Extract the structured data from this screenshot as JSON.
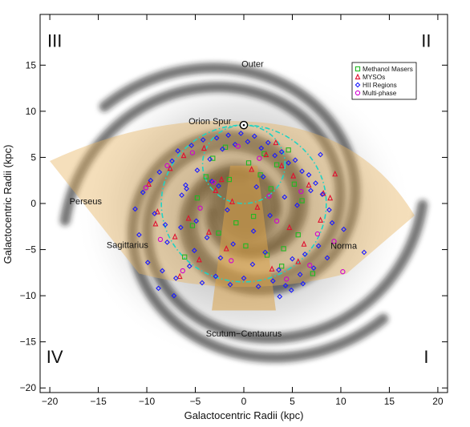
{
  "chart_data": {
    "type": "scatter",
    "xlabel": "Galactocentric Radii (kpc)",
    "ylabel": "Galactocentric Radii (kpc)",
    "xlim": [
      -21,
      21
    ],
    "ylim": [
      -20.5,
      20.5
    ],
    "xticks": [
      -20,
      -15,
      -10,
      -5,
      0,
      5,
      10,
      15,
      20
    ],
    "yticks": [
      -20,
      -15,
      -10,
      -5,
      0,
      5,
      10,
      15
    ],
    "quadrant_labels": [
      {
        "text": "III",
        "x": -19.5,
        "y": 17
      },
      {
        "text": "II",
        "x": 18.8,
        "y": 17
      },
      {
        "text": "IV",
        "x": -19.5,
        "y": -17.3
      },
      {
        "text": "I",
        "x": 18.8,
        "y": -17.3
      }
    ],
    "arm_labels": [
      {
        "text": "Outer",
        "x": 0.9,
        "y": 14.8
      },
      {
        "text": "Orion Spur",
        "x": -3.5,
        "y": 8.6
      },
      {
        "text": "Perseus",
        "x": -16.3,
        "y": -0.1
      },
      {
        "text": "Sagittarius",
        "x": -12,
        "y": -4.8
      },
      {
        "text": "Norma",
        "x": 10.3,
        "y": -4.9
      },
      {
        "text": "Scutum−Centaurus",
        "x": 0,
        "y": -14.4
      }
    ],
    "sun": {
      "x": 0,
      "y": 8.5
    },
    "legend": {
      "position": "top-right",
      "entries": [
        {
          "label": "Methanol Masers",
          "marker": "square",
          "color": "#22b822"
        },
        {
          "label": "MYSOs",
          "marker": "triangle",
          "color": "#e01030"
        },
        {
          "label": "HII Regions",
          "marker": "diamond",
          "color": "#1a1aff"
        },
        {
          "label": "Multi-phase",
          "marker": "circle",
          "color": "#d000d0"
        }
      ]
    },
    "series": [
      {
        "name": "Methanol Masers",
        "color": "#22b822",
        "marker": "square",
        "x": [
          -3.2,
          -1.5,
          2.1,
          3.4,
          -4.8,
          5.2,
          1.0,
          -2.6,
          4.1,
          6.0,
          -6.1,
          0.5,
          2.8,
          -0.8,
          3.9,
          -3.9,
          1.7,
          5.6,
          -5.3,
          0.2,
          7.1,
          -1.9,
          4.6,
          2.4
        ],
        "y": [
          4.9,
          2.6,
          5.4,
          4.2,
          0.6,
          2.1,
          -1.4,
          -3.2,
          -4.9,
          0.3,
          -5.8,
          4.4,
          1.6,
          -2.1,
          -6.8,
          2.9,
          3.1,
          -3.4,
          -2.4,
          -4.6,
          -7.6,
          6.1,
          5.8,
          -5.6
        ]
      },
      {
        "name": "MYSOs",
        "color": "#e01030",
        "marker": "triangle",
        "x": [
          -9.8,
          -7.6,
          -6.2,
          -4.1,
          -2.9,
          -1.2,
          0.8,
          2.3,
          3.9,
          5.1,
          6.7,
          8.2,
          7.9,
          -8.9,
          -5.7,
          -3.6,
          1.4,
          4.7,
          6.2,
          -7.1,
          -4.6,
          -1.8,
          2.9,
          5.6,
          8.9,
          -9.1,
          -6.6,
          3.3,
          9.4,
          -2.3
        ],
        "y": [
          2.1,
          3.8,
          5.2,
          6.0,
          1.4,
          0.2,
          3.7,
          5.3,
          4.1,
          3.0,
          2.0,
          1.1,
          -1.8,
          -0.9,
          -1.6,
          -3.1,
          -0.4,
          -2.6,
          -4.4,
          -3.6,
          -6.1,
          -4.9,
          -7.1,
          -6.3,
          0.6,
          -2.2,
          -7.9,
          6.6,
          3.2,
          2.6
        ]
      },
      {
        "name": "HII Regions",
        "color": "#1a1aff",
        "marker": "diamond",
        "x": [
          -11.2,
          -10.4,
          -9.6,
          -8.7,
          -8.1,
          -7.4,
          -6.8,
          -6.0,
          -5.4,
          -4.8,
          -4.2,
          -3.5,
          -2.8,
          -2.2,
          -1.6,
          -0.9,
          -0.3,
          0.4,
          1.1,
          1.8,
          2.5,
          3.2,
          3.9,
          4.6,
          5.3,
          6.0,
          6.7,
          7.4,
          8.1,
          8.8,
          -10.8,
          -9.2,
          -7.9,
          -6.5,
          -5.1,
          -3.8,
          -2.4,
          -1.1,
          0.9,
          2.2,
          3.6,
          5.0,
          6.3,
          7.7,
          9.1,
          -9.9,
          -8.4,
          -7.0,
          -5.6,
          -4.3,
          -2.9,
          -1.4,
          0.0,
          1.5,
          3.0,
          4.3,
          5.8,
          7.2,
          8.6,
          10.3,
          -6.4,
          -4.9,
          -3.3,
          -1.7,
          1.3,
          2.7,
          4.2,
          5.5,
          6.9,
          12.4,
          -8.8,
          -7.2,
          3.7,
          4.9,
          6.1,
          -5.9,
          2.0,
          7.9,
          -2.6,
          1.0
        ],
        "y": [
          -0.6,
          1.2,
          2.5,
          3.4,
          -2.3,
          4.6,
          5.7,
          2.0,
          6.3,
          3.6,
          6.9,
          4.8,
          7.1,
          5.9,
          7.4,
          6.4,
          7.6,
          6.7,
          7.3,
          6.0,
          6.6,
          5.2,
          5.6,
          4.4,
          4.7,
          3.5,
          3.1,
          2.2,
          1.0,
          -0.7,
          -3.4,
          -1.1,
          -4.2,
          -2.6,
          -5.1,
          -3.7,
          -5.9,
          -4.4,
          -6.6,
          -5.3,
          -7.2,
          -6.0,
          -5.5,
          -4.6,
          -2.1,
          -6.4,
          -7.3,
          -8.1,
          -6.8,
          -8.6,
          -7.9,
          -8.8,
          -8.1,
          -9.0,
          -8.4,
          -8.9,
          -7.7,
          -7.0,
          -5.9,
          -2.8,
          0.9,
          -1.9,
          2.4,
          -0.7,
          1.8,
          -1.3,
          0.7,
          -0.2,
          1.4,
          -5.3,
          -9.2,
          -10.0,
          -10.1,
          -9.4,
          -8.7,
          1.6,
          2.9,
          5.3,
          1.9,
          -3.0
        ]
      },
      {
        "name": "Multi-phase",
        "color": "#d000d0",
        "marker": "circle",
        "x": [
          -10.1,
          -7.9,
          -5.3,
          -3.1,
          -0.6,
          1.6,
          3.4,
          5.9,
          7.6,
          9.3,
          -8.6,
          -6.3,
          4.4,
          6.8,
          10.2,
          -4.5,
          2.6,
          -1.3
        ],
        "y": [
          1.7,
          4.1,
          5.5,
          2.3,
          6.2,
          4.9,
          -1.9,
          1.3,
          -3.3,
          -4.1,
          -3.9,
          -7.3,
          -8.2,
          -6.7,
          -7.4,
          -0.5,
          0.8,
          -6.2
        ]
      }
    ]
  }
}
